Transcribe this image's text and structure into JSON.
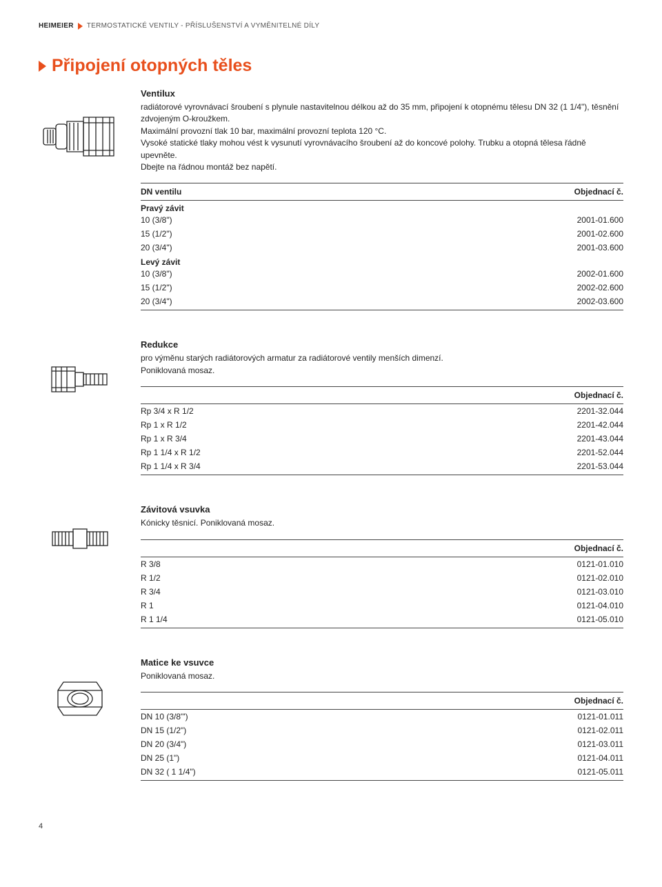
{
  "header": {
    "brand": "HEIMEIER",
    "crumb": "TERMOSTATICKÉ VENTILY - PŘÍSLUŠENSTVÍ A VYMĚNITELNÉ DÍLY"
  },
  "page_title": "Připojení otopných těles",
  "order_label": "Objednací č.",
  "section1": {
    "title": "Ventilux",
    "desc": "radiátorové vyrovnávací šroubení s plynule nastavitelnou délkou až do 35 mm, připojení k otopnému tělesu DN 32 (1 1/4\"), těsnění zdvojeným O-kroužkem.\nMaximální provozní tlak 10 bar, maximální provozní teplota 120 °C.\nVysoké statické tlaky mohou vést k vysunutí vyrovnávacího šroubení až do koncové polohy. Trubku a otopná tělesa řádně upevněte.\nDbejte na řádnou montáž bez napětí.",
    "head_left": "DN ventilu",
    "groups": [
      {
        "label": "Pravý závit",
        "rows": [
          {
            "l": "10 (3/8\")",
            "r": "2001-01.600"
          },
          {
            "l": "15 (1/2\")",
            "r": "2001-02.600"
          },
          {
            "l": "20 (3/4\")",
            "r": "2001-03.600"
          }
        ]
      },
      {
        "label": "Levý závit",
        "rows": [
          {
            "l": "10 (3/8\")",
            "r": "2002-01.600"
          },
          {
            "l": "15 (1/2\")",
            "r": "2002-02.600"
          },
          {
            "l": "20 (3/4\")",
            "r": "2002-03.600"
          }
        ]
      }
    ]
  },
  "section2": {
    "title": "Redukce",
    "desc": "pro výměnu starých radiátorových armatur za radiátorové ventily menších dimenzí.\nPoniklovaná mosaz.",
    "rows": [
      {
        "l": "Rp 3/4 x R 1/2",
        "r": "2201-32.044"
      },
      {
        "l": "Rp 1 x R 1/2",
        "r": "2201-42.044"
      },
      {
        "l": "Rp 1 x R 3/4",
        "r": "2201-43.044"
      },
      {
        "l": "Rp 1 1/4 x R 1/2",
        "r": "2201-52.044"
      },
      {
        "l": "Rp 1 1/4 x R 3/4",
        "r": "2201-53.044"
      }
    ]
  },
  "section3": {
    "title": "Závitová vsuvka",
    "desc": "Kónicky těsnicí. Poniklovaná mosaz.",
    "rows": [
      {
        "l": "R 3/8",
        "r": "0121-01.010"
      },
      {
        "l": "R 1/2",
        "r": "0121-02.010"
      },
      {
        "l": "R 3/4",
        "r": "0121-03.010"
      },
      {
        "l": "R 1",
        "r": "0121-04.010"
      },
      {
        "l": "R 1 1/4",
        "r": "0121-05.010"
      }
    ]
  },
  "section4": {
    "title": "Matice ke vsuvce",
    "desc": "Poniklovaná mosaz.",
    "rows": [
      {
        "l": "DN 10 (3/8'\")",
        "r": "0121-01.011"
      },
      {
        "l": "DN 15 (1/2\")",
        "r": "0121-02.011"
      },
      {
        "l": "DN 20 (3/4\")",
        "r": "0121-03.011"
      },
      {
        "l": "DN 25 (1\")",
        "r": "0121-04.011"
      },
      {
        "l": "DN 32 ( 1 1/4\")",
        "r": "0121-05.011"
      }
    ]
  },
  "page_number": "4",
  "style": {
    "accent_color": "#e84f1c",
    "text_color": "#222",
    "border_color": "#444",
    "body_font_size": 12,
    "title_font_size": 25
  }
}
